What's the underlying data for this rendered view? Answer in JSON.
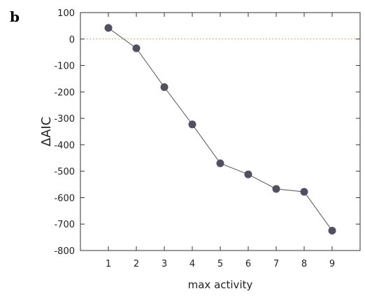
{
  "panel_label": "b",
  "chart_data": {
    "type": "line",
    "xlabel": "max activity",
    "ylabel": "ΔAIC",
    "x": [
      1,
      2,
      3,
      4,
      5,
      6,
      7,
      8,
      9
    ],
    "y": [
      42,
      -35,
      -182,
      -323,
      -470,
      -512,
      -567,
      -578,
      -725
    ],
    "xlim": [
      0,
      10
    ],
    "ylim": [
      -800,
      100
    ],
    "xticks": [
      1,
      2,
      3,
      4,
      5,
      6,
      7,
      8,
      9
    ],
    "yticks": [
      100,
      0,
      -100,
      -200,
      -300,
      -400,
      -500,
      -600,
      -700,
      -800
    ],
    "reference_line": {
      "y": 0,
      "style": "dotted",
      "color": "#d9822b"
    },
    "line_color": "#555555",
    "marker_color": "#505060",
    "grid": false
  }
}
